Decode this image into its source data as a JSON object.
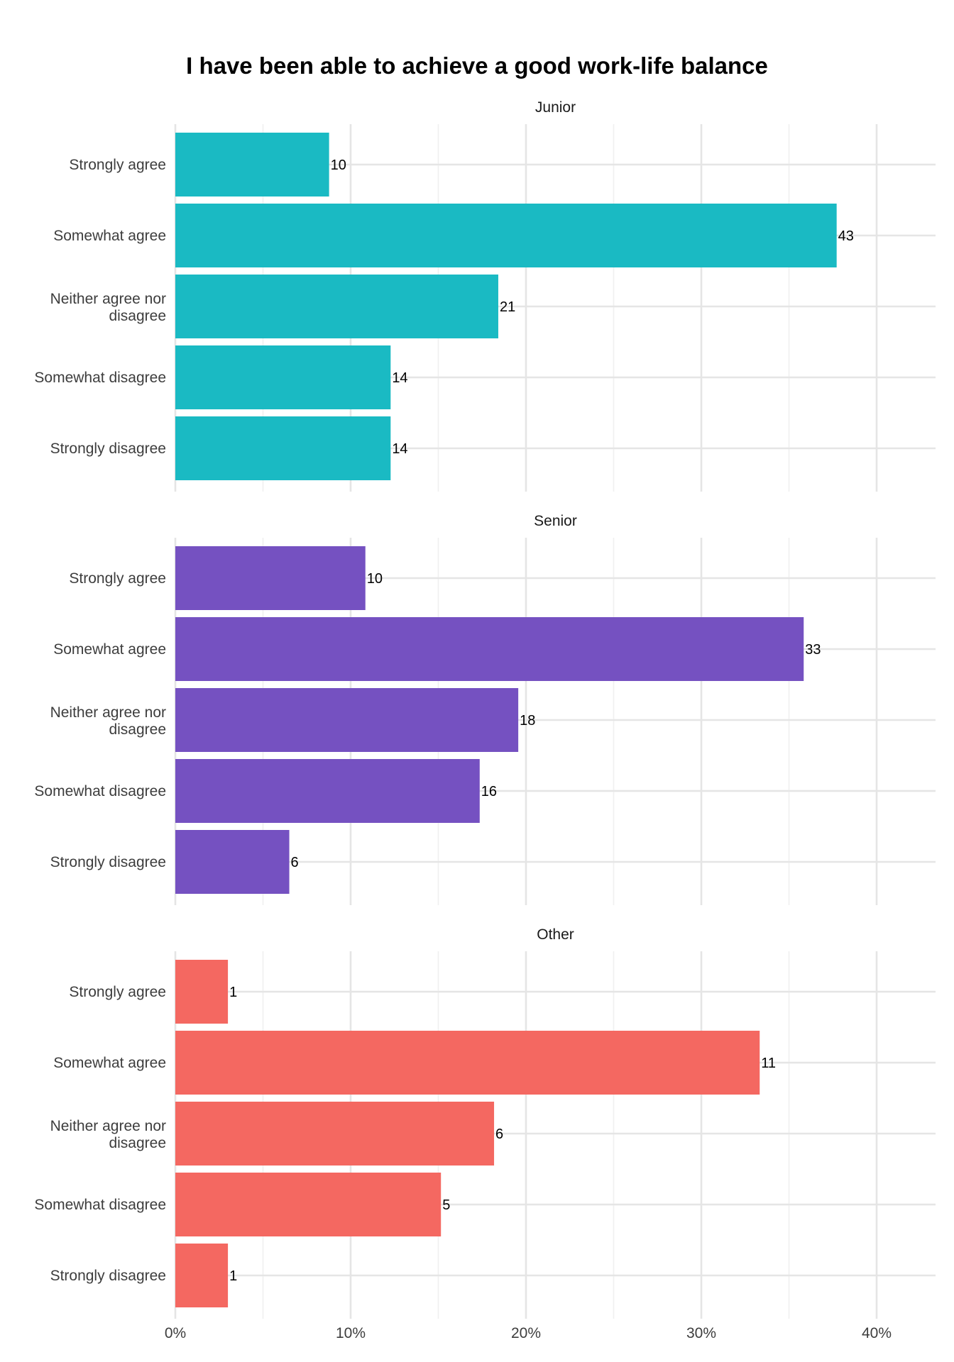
{
  "chart_data": {
    "type": "bar",
    "orientation": "horizontal",
    "title": "I have been able to achieve a good work-life balance",
    "xlabel": "",
    "ylabel": "",
    "x_axis": {
      "format": "percent",
      "xlim": [
        0,
        0.434
      ],
      "ticks": [
        0,
        0.1,
        0.2,
        0.3,
        0.4
      ],
      "tick_labels": [
        "0%",
        "10%",
        "20%",
        "30%",
        "40%"
      ]
    },
    "categories": [
      "Strongly agree",
      "Somewhat agree",
      "Neither agree nor disagree",
      "Somewhat disagree",
      "Strongly disagree"
    ],
    "grid": true,
    "legend": "none",
    "facets": [
      {
        "name": "Junior",
        "color": "#1ABAC3",
        "counts": [
          10,
          43,
          21,
          14,
          14
        ],
        "shares": [
          0.0877,
          0.3772,
          0.1842,
          0.1228,
          0.1228
        ]
      },
      {
        "name": "Senior",
        "color": "#7551C1",
        "counts": [
          10,
          33,
          18,
          16,
          6
        ],
        "shares": [
          0.1084,
          0.3584,
          0.1956,
          0.1736,
          0.065
        ]
      },
      {
        "name": "Other",
        "color": "#F46861",
        "counts": [
          1,
          11,
          6,
          5,
          1
        ],
        "shares": [
          0.03,
          0.3333,
          0.1818,
          0.1515,
          0.03
        ]
      }
    ]
  }
}
